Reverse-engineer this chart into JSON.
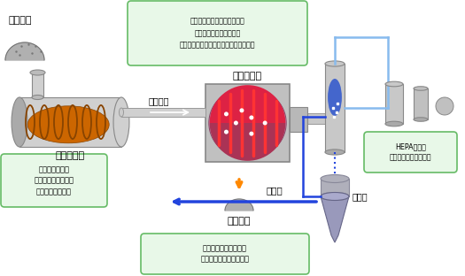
{
  "bg": "#ffffff",
  "green_fill": "#e8f8e8",
  "green_border": "#66bb66",
  "blue_line": "#2244dd",
  "light_blue_line": "#88bbee",
  "orange_arrow": "#ff8800",
  "blue_arrow": "#2244dd",
  "gray1": "#d0d0d0",
  "gray2": "#b8b8b8",
  "gray3": "#999999",
  "furnace_orange": "#cc6600",
  "coil_dark": "#884400",
  "reactor_red": "#cc2233",
  "reactor_pink": "#bb4466",
  "reactor_dark": "#991122",
  "col_blue": "#3355bb",
  "funnel_fill": "#9999bb",
  "funnel_dark": "#7777aa",
  "water_blue": "#aabbdd",
  "labels": {
    "polluted_soil": "汚染土壌",
    "volatile_gas": "揮発ガス",
    "indirect_heat": "間接熱脱着",
    "steam_title": "水蒸気分解",
    "steam_box": "土壌から蒸発させた汚染物を\n水蒸気で分解して無害化\n（水蒸気は土壌の水分が蒸発したもの）",
    "hepa": "HEPA活性炭\n（セーフティネット）",
    "water_treat": "水処理",
    "humid": "湿潤水",
    "clean_soil": "浄化土壌",
    "indirect_box": "土壌を加熱して\n汚染物を蒸発させる\n（土壌を無害化）",
    "clean_use": "浄化土壌は土木原料や\nセメント原料などへ活用"
  }
}
